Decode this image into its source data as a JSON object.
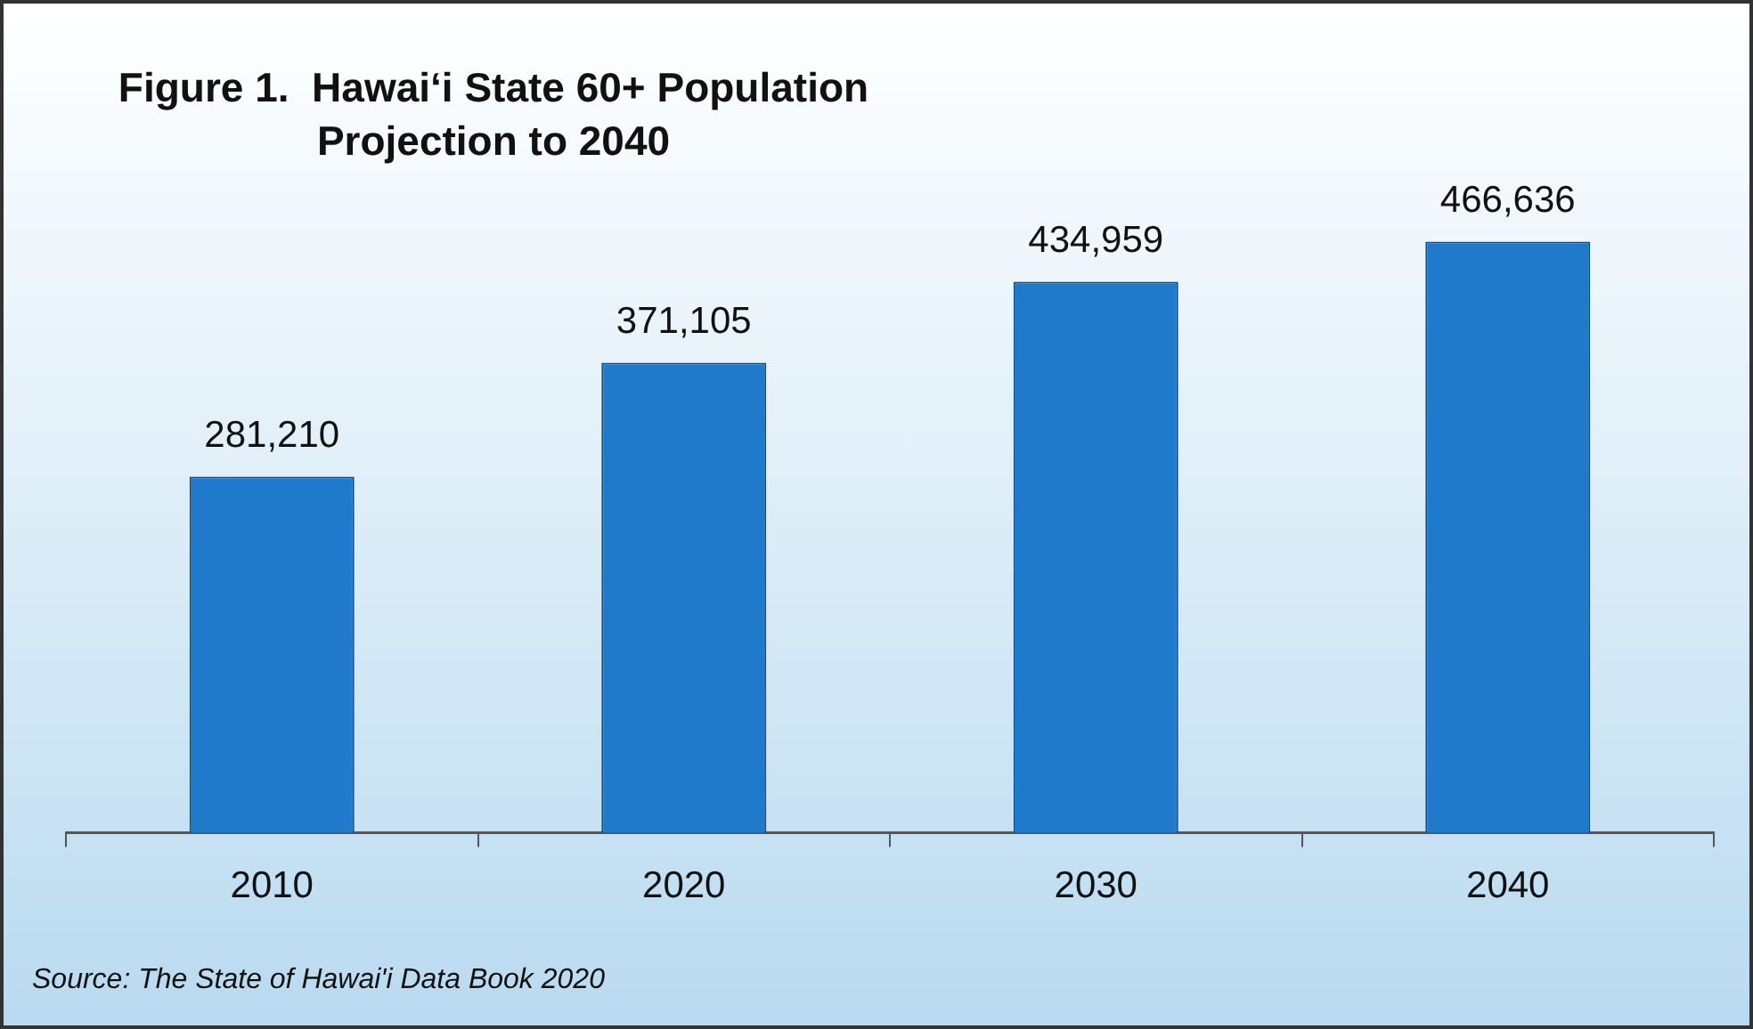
{
  "chart_data": {
    "type": "bar",
    "title": "Figure 1.  Hawai‘i State 60+ Population Projection to 2040",
    "categories": [
      "2010",
      "2020",
      "2030",
      "2040"
    ],
    "values": [
      281210,
      371105,
      434959,
      466636
    ],
    "color": "#1f7acc",
    "value_labels": [
      "281,210",
      "371,105",
      "434,959",
      "466,636"
    ],
    "legend": false,
    "grid": false,
    "annotations": [
      "Source: The State of Hawai'i Data Book 2020"
    ]
  }
}
